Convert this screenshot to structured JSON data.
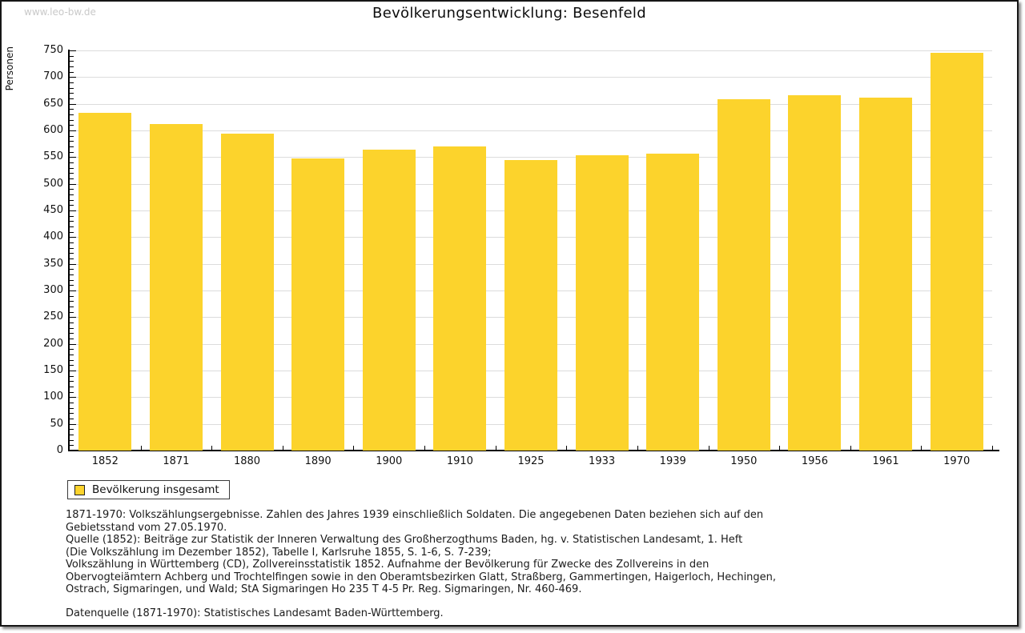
{
  "watermark": "www.leo-bw.de",
  "title": "Bevölkerungsentwicklung: Besenfeld",
  "chart_data": {
    "type": "bar",
    "title": "Bevölkerungsentwicklung: Besenfeld",
    "categories": [
      "1852",
      "1871",
      "1880",
      "1890",
      "1900",
      "1910",
      "1925",
      "1933",
      "1939",
      "1950",
      "1956",
      "1961",
      "1970"
    ],
    "values": [
      633,
      612,
      594,
      548,
      564,
      570,
      545,
      554,
      557,
      658,
      666,
      662,
      746
    ],
    "series_name": "Bevölkerung insgesamt",
    "xlabel": "",
    "ylabel": "Personen",
    "ylim": [
      0,
      750
    ],
    "yticks": [
      0,
      50,
      100,
      150,
      200,
      250,
      300,
      350,
      400,
      450,
      500,
      550,
      600,
      650,
      700,
      750
    ],
    "ytick_minor_step": 10,
    "grid": true,
    "legend_position": "bottom-left",
    "bar_color": "#FCD32C",
    "gridline_color": "#dcdcdc"
  },
  "legend": {
    "label": "Bevölkerung insgesamt",
    "swatch_color": "#FCD32C"
  },
  "footnotes": {
    "lines": [
      "1871-1970: Volkszählungsergebnisse. Zahlen des Jahres 1939 einschließlich Soldaten. Die angegebenen Daten beziehen sich auf den",
      "Gebietsstand vom 27.05.1970.",
      "Quelle (1852): Beiträge zur Statistik der Inneren Verwaltung des Großherzogthums Baden, hg. v. Statistischen Landesamt, 1. Heft",
      "(Die Volkszählung im Dezember 1852), Tabelle I, Karlsruhe 1855, S. 1-6, S. 7-239;",
      "Volkszählung in Württemberg (CD), Zollvereinsstatistik 1852. Aufnahme der Bevölkerung für Zwecke des Zollvereins in den",
      "Obervogteiämtern Achberg und Trochtelfingen sowie in den Oberamtsbezirken Glatt, Straßberg, Gammertingen, Haigerloch, Hechingen,",
      "Ostrach, Sigmaringen, und Wald; StA Sigmaringen Ho 235 T 4-5 Pr. Reg. Sigmaringen, Nr. 460-469."
    ],
    "datasource": "Datenquelle (1871-1970): Statistisches Landesamt Baden-Württemberg."
  }
}
